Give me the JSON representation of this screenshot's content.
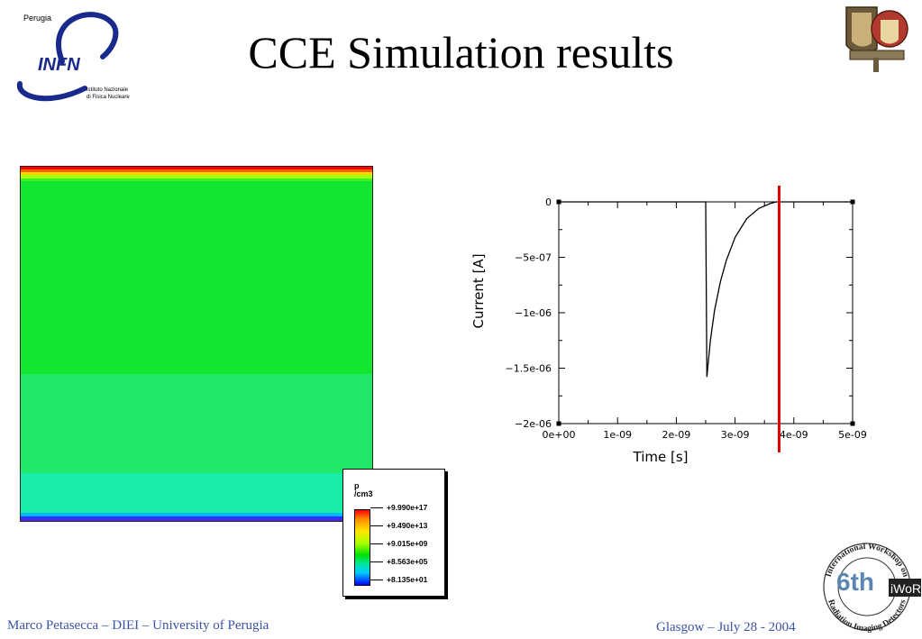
{
  "slide": {
    "title": "CCE Simulation results",
    "footer_left": "Marco Petasecca – DIEI – University of Perugia",
    "footer_right": "Glasgow – July 28 - 2004"
  },
  "logos": {
    "infn": {
      "city": "Perugia",
      "name": "INFN",
      "line1": "Istituto Nazionale",
      "line2": "di Fisica Nucleare"
    },
    "perugia_univ": {
      "icon": "university-crest-icon"
    },
    "iworid": {
      "edition": "6th",
      "name": "iWoRiD",
      "ring_top": "International Workshop on",
      "ring_bottom": "Radiation Imaging Detectors"
    }
  },
  "colors": {
    "footer_text": "#3b53a8",
    "marker_line": "#e00000",
    "map_green": "#12e62e",
    "map_light_green": "#1fe86a",
    "map_teal": "#1aedaa"
  },
  "legend": {
    "unit": "p\n/cm3",
    "labels": [
      "+9.990e+17",
      "+9.490e+13",
      "+9.015e+09",
      "+8.563e+05",
      "+8.135e+01"
    ]
  },
  "chart_data": {
    "type": "line",
    "xlabel": "Time [s]",
    "ylabel": "Current [A]",
    "xlim": [
      0,
      5e-09
    ],
    "ylim": [
      -2e-06,
      0
    ],
    "x_ticks": [
      "0e+00",
      "1e-09",
      "2e-09",
      "3e-09",
      "4e-09",
      "5e-09"
    ],
    "y_ticks": [
      "0",
      "−5e-07",
      "−1e-06",
      "−1.5e-06",
      "−2e-06"
    ],
    "series": [
      {
        "x": [
          0,
          2.5e-09,
          2.52e-09,
          2.58e-09,
          2.65e-09,
          2.75e-09,
          2.85e-09,
          3e-09,
          3.2e-09,
          3.4e-09,
          3.6e-09,
          3.7e-09,
          5e-09
        ],
        "y": [
          0,
          0,
          -1.58e-06,
          -1.25e-06,
          -9.8e-07,
          -7.2e-07,
          -5.3e-07,
          -3.2e-07,
          -1.5e-07,
          -6e-08,
          -1.5e-08,
          0,
          0
        ]
      }
    ],
    "marker_x": 3.75e-09
  }
}
